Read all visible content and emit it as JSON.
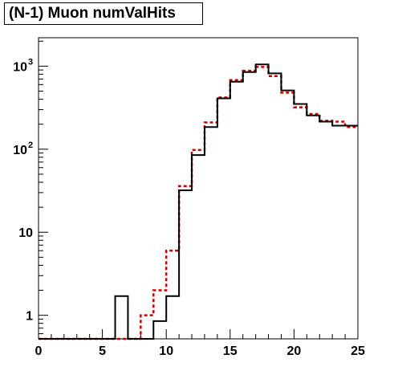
{
  "chart_data": {
    "type": "step",
    "title": "(N-1) Muon numValHits",
    "xlabel": "",
    "ylabel": "",
    "xlim": [
      0,
      25
    ],
    "ylim": [
      0.52,
      2200
    ],
    "yscale": "log",
    "bin_width": 1,
    "x_ticks": [
      {
        "value": 0,
        "label": "0"
      },
      {
        "value": 5,
        "label": "5"
      },
      {
        "value": 10,
        "label": "10"
      },
      {
        "value": 15,
        "label": "15"
      },
      {
        "value": 20,
        "label": "20"
      },
      {
        "value": 25,
        "label": "25"
      }
    ],
    "y_ticks": [
      {
        "value": 1,
        "label": "1",
        "sup": ""
      },
      {
        "value": 10,
        "label": "10",
        "sup": ""
      },
      {
        "value": 100,
        "label": "10",
        "sup": "2"
      },
      {
        "value": 1000,
        "label": "10",
        "sup": "3"
      }
    ],
    "grid": false,
    "series": [
      {
        "color": "#000000",
        "style": "solid",
        "bin_edges": [
          0,
          1,
          2,
          3,
          4,
          5,
          6,
          7,
          8,
          9,
          10,
          11,
          12,
          13,
          14,
          15,
          16,
          17,
          18,
          19,
          20,
          21,
          22,
          23,
          24,
          25
        ],
        "values": [
          0,
          0,
          0,
          0,
          0,
          0,
          1.7,
          0,
          0,
          0.85,
          1.7,
          32,
          85,
          185,
          410,
          650,
          850,
          1050,
          820,
          510,
          350,
          255,
          215,
          192,
          192
        ]
      },
      {
        "color": "#cc0000",
        "style": "dashed",
        "bin_edges": [
          0,
          1,
          2,
          3,
          4,
          5,
          6,
          7,
          8,
          9,
          10,
          11,
          12,
          13,
          14,
          15,
          16,
          17,
          18,
          19,
          20,
          21,
          22,
          23,
          24,
          25
        ],
        "values": [
          0,
          0,
          0,
          0,
          0,
          0,
          0,
          0,
          1,
          2,
          6,
          36,
          98,
          210,
          420,
          680,
          880,
          980,
          760,
          480,
          320,
          265,
          220,
          215,
          185
        ]
      }
    ]
  }
}
